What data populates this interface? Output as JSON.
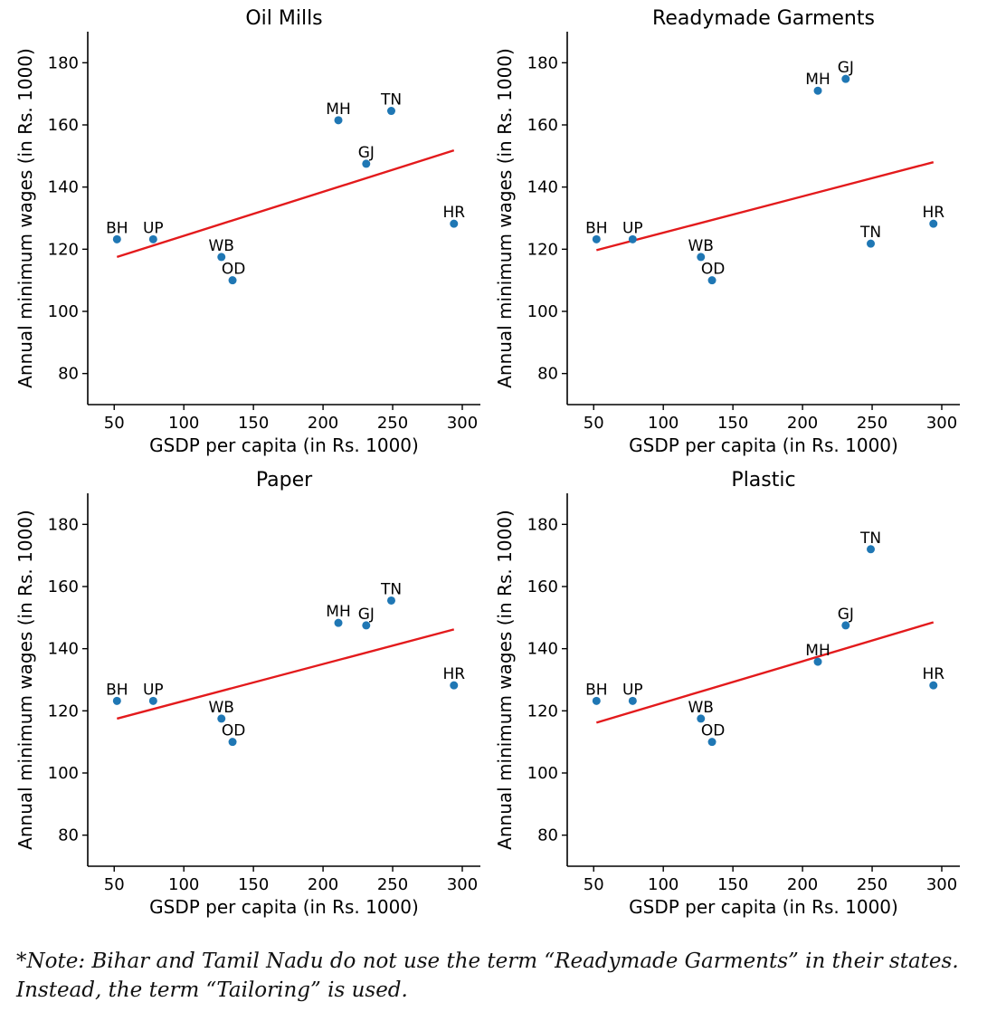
{
  "chart_data": [
    {
      "type": "scatter",
      "title": "Oil Mills",
      "xlabel": "GSDP per capita (in Rs. 1000)",
      "ylabel": "Annual minimum wages (in Rs. 1000)",
      "xlim": [
        31,
        313
      ],
      "ylim": [
        70,
        190
      ],
      "xticks": [
        50,
        100,
        150,
        200,
        250,
        300
      ],
      "yticks": [
        80,
        100,
        120,
        140,
        160,
        180
      ],
      "points": [
        {
          "label": "BH",
          "x": 52,
          "y": 123.2
        },
        {
          "label": "UP",
          "x": 78,
          "y": 123.2
        },
        {
          "label": "WB",
          "x": 127,
          "y": 117.5
        },
        {
          "label": "OD",
          "x": 135,
          "y": 110
        },
        {
          "label": "MH",
          "x": 211,
          "y": 161.5
        },
        {
          "label": "GJ",
          "x": 231,
          "y": 147.5
        },
        {
          "label": "TN",
          "x": 249,
          "y": 164.5
        },
        {
          "label": "HR",
          "x": 294,
          "y": 128.2
        }
      ],
      "trend": {
        "x": [
          52,
          294
        ],
        "y": [
          117.5,
          151.8
        ]
      }
    },
    {
      "type": "scatter",
      "title": "Readymade Garments",
      "xlabel": "GSDP per capita (in Rs. 1000)",
      "ylabel": "Annual minimum wages (in Rs. 1000)",
      "xlim": [
        31,
        313
      ],
      "ylim": [
        70,
        190
      ],
      "xticks": [
        50,
        100,
        150,
        200,
        250,
        300
      ],
      "yticks": [
        80,
        100,
        120,
        140,
        160,
        180
      ],
      "points": [
        {
          "label": "BH",
          "x": 52,
          "y": 123.2
        },
        {
          "label": "UP",
          "x": 78,
          "y": 123.2
        },
        {
          "label": "WB",
          "x": 127,
          "y": 117.5
        },
        {
          "label": "OD",
          "x": 135,
          "y": 110
        },
        {
          "label": "MH",
          "x": 211,
          "y": 171
        },
        {
          "label": "GJ",
          "x": 231,
          "y": 174.8
        },
        {
          "label": "TN",
          "x": 249,
          "y": 121.8
        },
        {
          "label": "HR",
          "x": 294,
          "y": 128.2
        }
      ],
      "trend": {
        "x": [
          52,
          294
        ],
        "y": [
          119.7,
          148
        ]
      }
    },
    {
      "type": "scatter",
      "title": "Paper",
      "xlabel": "GSDP per capita (in Rs. 1000)",
      "ylabel": "Annual minimum wages (in Rs. 1000)",
      "xlim": [
        31,
        313
      ],
      "ylim": [
        70,
        190
      ],
      "xticks": [
        50,
        100,
        150,
        200,
        250,
        300
      ],
      "yticks": [
        80,
        100,
        120,
        140,
        160,
        180
      ],
      "points": [
        {
          "label": "BH",
          "x": 52,
          "y": 123.2
        },
        {
          "label": "UP",
          "x": 78,
          "y": 123.2
        },
        {
          "label": "WB",
          "x": 127,
          "y": 117.5
        },
        {
          "label": "OD",
          "x": 135,
          "y": 110
        },
        {
          "label": "MH",
          "x": 211,
          "y": 148.3
        },
        {
          "label": "GJ",
          "x": 231,
          "y": 147.5
        },
        {
          "label": "TN",
          "x": 249,
          "y": 155.5
        },
        {
          "label": "HR",
          "x": 294,
          "y": 128.2
        }
      ],
      "trend": {
        "x": [
          52,
          294
        ],
        "y": [
          117.5,
          146.2
        ]
      }
    },
    {
      "type": "scatter",
      "title": "Plastic",
      "xlabel": "GSDP per capita (in Rs. 1000)",
      "ylabel": "Annual minimum wages (in Rs. 1000)",
      "xlim": [
        31,
        313
      ],
      "ylim": [
        70,
        190
      ],
      "xticks": [
        50,
        100,
        150,
        200,
        250,
        300
      ],
      "yticks": [
        80,
        100,
        120,
        140,
        160,
        180
      ],
      "points": [
        {
          "label": "BH",
          "x": 52,
          "y": 123.2
        },
        {
          "label": "UP",
          "x": 78,
          "y": 123.2
        },
        {
          "label": "WB",
          "x": 127,
          "y": 117.5
        },
        {
          "label": "OD",
          "x": 135,
          "y": 110
        },
        {
          "label": "MH",
          "x": 211,
          "y": 135.8
        },
        {
          "label": "GJ",
          "x": 231,
          "y": 147.5
        },
        {
          "label": "TN",
          "x": 249,
          "y": 172
        },
        {
          "label": "HR",
          "x": 294,
          "y": 128.2
        }
      ],
      "trend": {
        "x": [
          52,
          294
        ],
        "y": [
          116.2,
          148.5
        ]
      }
    }
  ],
  "colors": {
    "point": "#1f77b4",
    "trend": "#e31a1c",
    "axis": "#000000"
  },
  "note": {
    "line1": "*Note: Bihar and Tamil Nadu do not use the term “Readymade Garments” in their states.",
    "line2": "Instead, the term “Tailoring” is used."
  }
}
